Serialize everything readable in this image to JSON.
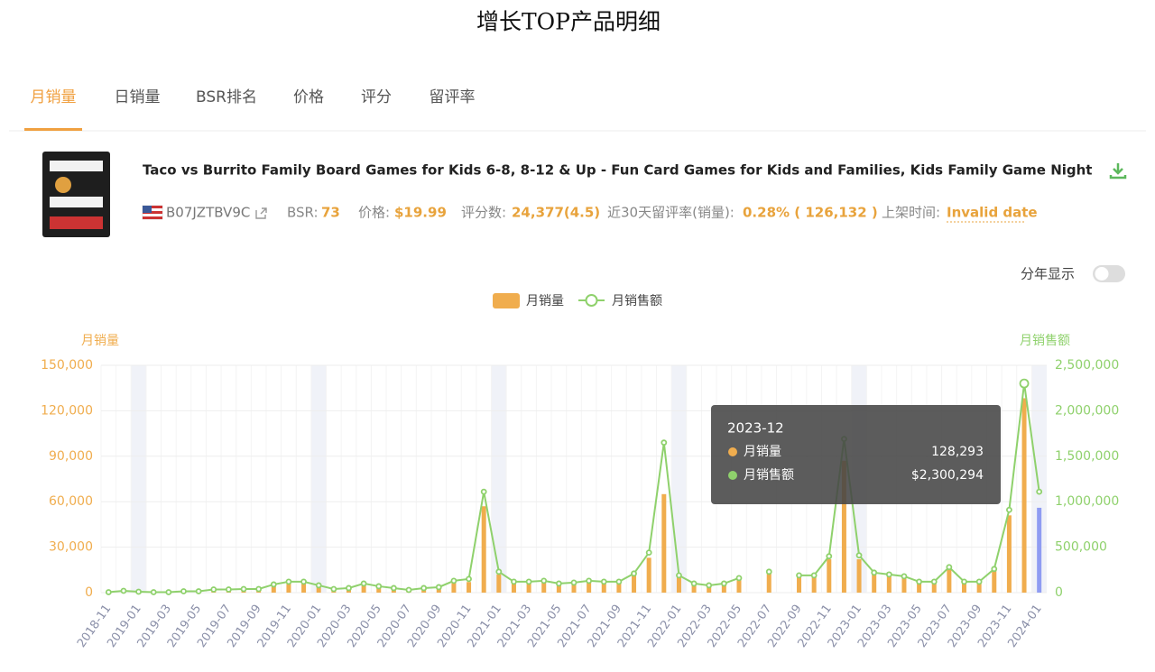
{
  "header": {
    "title": "增长TOP产品明细"
  },
  "tabs": [
    "月销量",
    "日销量",
    "BSR排名",
    "价格",
    "评分",
    "留评率"
  ],
  "active_tab": 0,
  "product": {
    "title": "Taco vs Burrito Family Board Games for Kids 6-8, 8-12 & Up - Fun Card Games for Kids and Families, Kids Family Game Night",
    "asin": "B07JZTBV9C",
    "meta": [
      {
        "label": "BSR:",
        "value": "73"
      },
      {
        "label": "价格:",
        "value": "$19.99"
      },
      {
        "label": "评分数:",
        "value": "24,377(4.5)"
      },
      {
        "label": "近30天留评率(销量):",
        "value": "0.28% ( 126,132 )"
      },
      {
        "label": "上架时间:",
        "value": "Invalid date"
      }
    ]
  },
  "toggle": {
    "label": "分年显示",
    "on": false
  },
  "chart_data": {
    "type": "bar-line",
    "categories": [
      "2018-11",
      null,
      "2019-01",
      null,
      "2019-03",
      null,
      "2019-05",
      null,
      "2019-07",
      null,
      "2019-09",
      null,
      "2019-11",
      null,
      "2020-01",
      null,
      "2020-03",
      null,
      "2020-05",
      null,
      "2020-07",
      null,
      "2020-09",
      null,
      "2020-11",
      null,
      "2021-01",
      null,
      "2021-03",
      null,
      "2021-05",
      null,
      "2021-07",
      null,
      "2021-09",
      null,
      "2021-11",
      null,
      "2022-01",
      null,
      "2022-03",
      null,
      "2022-05",
      null,
      "2022-07",
      null,
      "2022-09",
      null,
      "2022-11",
      null,
      "2023-01",
      null,
      "2023-03",
      null,
      "2023-05",
      null,
      "2023-07",
      null,
      "2023-09",
      null,
      "2023-11",
      null,
      "2024-01"
    ],
    "series": [
      {
        "name": "月销量",
        "type": "bar",
        "color": "#f0ad4e",
        "current_color": "#8f9cf2",
        "values": [
          0,
          1000,
          500,
          300,
          300,
          800,
          800,
          2000,
          2000,
          2000,
          2500,
          5000,
          7000,
          8000,
          5000,
          2500,
          3000,
          6000,
          4000,
          3000,
          2000,
          3000,
          3500,
          8000,
          7000,
          57000,
          12000,
          7000,
          7000,
          8000,
          6000,
          7000,
          8000,
          7000,
          7000,
          12000,
          23000,
          65000,
          11000,
          6000,
          5000,
          6000,
          9000,
          null,
          13000,
          null,
          11000,
          11000,
          22000,
          87000,
          22000,
          13000,
          12000,
          11000,
          7000,
          7000,
          16000,
          7000,
          7000,
          15000,
          51000,
          128293,
          56000
        ]
      },
      {
        "name": "月销售额",
        "type": "line",
        "axis": "y2",
        "color": "#8fd16c",
        "values": [
          5000,
          20000,
          10000,
          5000,
          5000,
          15000,
          15000,
          35000,
          35000,
          40000,
          40000,
          90000,
          120000,
          120000,
          80000,
          40000,
          50000,
          100000,
          70000,
          50000,
          30000,
          50000,
          60000,
          130000,
          150000,
          1110000,
          230000,
          120000,
          120000,
          130000,
          100000,
          110000,
          130000,
          120000,
          120000,
          210000,
          440000,
          1650000,
          190000,
          100000,
          80000,
          100000,
          160000,
          null,
          230000,
          null,
          190000,
          190000,
          400000,
          1690000,
          410000,
          220000,
          200000,
          180000,
          120000,
          120000,
          280000,
          120000,
          120000,
          260000,
          910000,
          2300294,
          1110000
        ]
      }
    ],
    "ylabel": "月销量",
    "y2label": "月销售额",
    "ylim": [
      0,
      150000
    ],
    "yticks": [
      0,
      {
        "value": 30000,
        "label": "30,000"
      },
      {
        "value": 60000,
        "label": "60,000"
      },
      {
        "value": 90000,
        "label": "90,000"
      },
      {
        "value": 120000,
        "label": "120,000"
      },
      {
        "value": 150000,
        "label": "150,000"
      }
    ],
    "y2lim": [
      0,
      2500000
    ],
    "y2ticks": [
      0,
      {
        "value": 500000,
        "label": "500,000"
      },
      {
        "value": 1000000,
        "label": "1,000,000"
      },
      {
        "value": 1500000,
        "label": "1,500,000"
      },
      {
        "value": 2000000,
        "label": "2,000,000"
      },
      {
        "value": 2500000,
        "label": "2,500,000"
      }
    ],
    "grid": true,
    "tooltip": {
      "title": "2023-12",
      "rows": [
        {
          "name": "月销量",
          "label": "128,293"
        },
        {
          "name": "月销售额",
          "label": "$2,300,294"
        }
      ]
    }
  }
}
